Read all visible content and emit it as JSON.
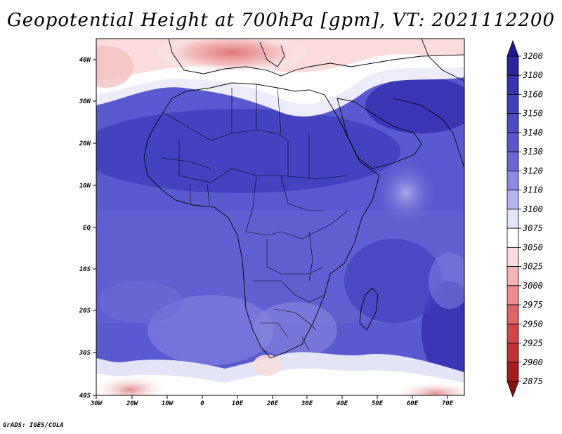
{
  "title": "Geopotential Height at 700hPa [gpm], VT: 2021112200",
  "footer": "GrADS: IGES/COLA",
  "map": {
    "lat_labels": [
      "40N",
      "30N",
      "20N",
      "10N",
      "EQ",
      "10S",
      "20S",
      "30S",
      "40S"
    ],
    "lon_labels": [
      "30W",
      "20W",
      "10W",
      "0",
      "10E",
      "20E",
      "30E",
      "40E",
      "50E",
      "60E",
      "70E"
    ]
  },
  "colorbar": {
    "levels": [
      "3200",
      "3180",
      "3160",
      "3150",
      "3140",
      "3130",
      "3120",
      "3110",
      "3100",
      "3075",
      "3050",
      "3025",
      "3000",
      "2975",
      "2950",
      "2925",
      "2900",
      "2875"
    ],
    "colors": [
      "#1e1a8c",
      "#2a26a0",
      "#3632b0",
      "#4040bc",
      "#4b4bc4",
      "#5858cc",
      "#6868d4",
      "#8a8ae0",
      "#b4b4ee",
      "#e4e4f8",
      "#ffffff",
      "#fadcdc",
      "#f4b4b4",
      "#ec8c8c",
      "#e06464",
      "#d44646",
      "#c43030",
      "#a81c1c",
      "#8a1010"
    ]
  }
}
